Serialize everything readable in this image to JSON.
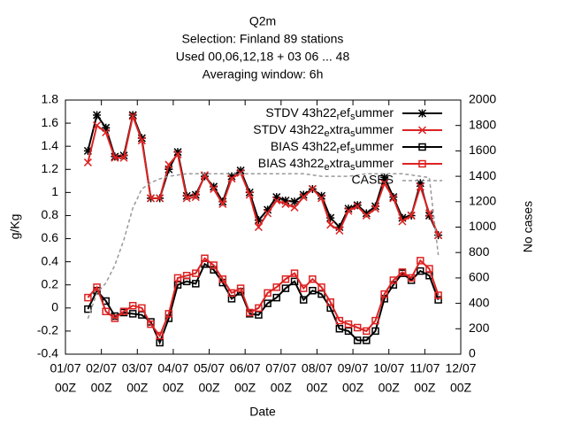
{
  "chart_data": {
    "type": "line",
    "title": [
      "Q2m",
      "Selection: Finland      89 stations",
      "Used  00,06,12,18  + 03 06 ... 48",
      "Averaging window:  6h"
    ],
    "xlabel": "Date",
    "ylabel": "g/Kg",
    "y2label": "No cases",
    "xlim": [
      1,
      12
    ],
    "xticks": [
      {
        "value": 1,
        "label": [
          "01/07",
          "00Z"
        ]
      },
      {
        "value": 2,
        "label": [
          "02/07",
          "00Z"
        ]
      },
      {
        "value": 3,
        "label": [
          "03/07",
          "00Z"
        ]
      },
      {
        "value": 4,
        "label": [
          "04/07",
          "00Z"
        ]
      },
      {
        "value": 5,
        "label": [
          "05/07",
          "00Z"
        ]
      },
      {
        "value": 6,
        "label": [
          "06/07",
          "00Z"
        ]
      },
      {
        "value": 7,
        "label": [
          "07/07",
          "00Z"
        ]
      },
      {
        "value": 8,
        "label": [
          "08/07",
          "00Z"
        ]
      },
      {
        "value": 9,
        "label": [
          "09/07",
          "00Z"
        ]
      },
      {
        "value": 10,
        "label": [
          "10/07",
          "00Z"
        ]
      },
      {
        "value": 11,
        "label": [
          "11/07",
          "00Z"
        ]
      },
      {
        "value": 12,
        "label": [
          "12/07",
          "00Z"
        ]
      }
    ],
    "ylim": [
      -0.4,
      1.8
    ],
    "yticks": [
      -0.4,
      -0.2,
      0,
      0.2,
      0.4,
      0.6,
      0.8,
      1,
      1.2,
      1.4,
      1.6,
      1.8
    ],
    "y2lim": [
      0,
      2000
    ],
    "y2ticks": [
      0,
      200,
      400,
      600,
      800,
      1000,
      1200,
      1400,
      1600,
      1800,
      2000
    ],
    "legend": "top-right",
    "grid": false,
    "x": [
      1.625,
      1.875,
      2.125,
      2.375,
      2.625,
      2.875,
      3.125,
      3.375,
      3.625,
      3.875,
      4.125,
      4.375,
      4.625,
      4.875,
      5.125,
      5.375,
      5.625,
      5.875,
      6.125,
      6.375,
      6.625,
      6.875,
      7.125,
      7.375,
      7.625,
      7.875,
      8.125,
      8.375,
      8.625,
      8.875,
      9.125,
      9.375,
      9.625,
      9.875,
      10.125,
      10.375,
      10.625,
      10.875,
      11.125,
      11.375
    ],
    "series": [
      {
        "name": "STDV 43h22_ref_summer",
        "color": "#000000",
        "marker": "star",
        "values": [
          1.36,
          1.67,
          1.56,
          1.31,
          1.32,
          1.67,
          1.47,
          0.95,
          0.95,
          1.2,
          1.35,
          0.97,
          0.98,
          1.14,
          1.05,
          0.92,
          1.14,
          1.19,
          1.0,
          0.76,
          0.85,
          0.96,
          0.93,
          0.92,
          0.98,
          1.03,
          0.97,
          0.78,
          0.7,
          0.86,
          0.89,
          0.82,
          0.88,
          1.13,
          0.96,
          0.78,
          0.8,
          1.08,
          0.8,
          0.63
        ]
      },
      {
        "name": "STDV 43h22_extra_summer",
        "color": "#dd2222",
        "marker": "cross",
        "values": [
          1.26,
          1.58,
          1.52,
          1.3,
          1.3,
          1.66,
          1.45,
          0.95,
          0.95,
          1.24,
          1.33,
          0.95,
          0.96,
          1.15,
          1.03,
          0.9,
          1.12,
          1.17,
          0.98,
          0.7,
          0.82,
          0.93,
          0.9,
          0.87,
          0.96,
          1.03,
          0.95,
          0.72,
          0.67,
          0.84,
          0.88,
          0.8,
          0.86,
          1.08,
          0.95,
          0.75,
          0.8,
          1.05,
          0.82,
          0.63
        ]
      },
      {
        "name": "BIAS 43h22_ref_summer",
        "color": "#000000",
        "marker": "square",
        "values": [
          -0.01,
          0.15,
          0.06,
          -0.07,
          -0.04,
          -0.05,
          -0.06,
          -0.12,
          -0.3,
          -0.09,
          0.2,
          0.23,
          0.21,
          0.38,
          0.33,
          0.22,
          0.08,
          0.14,
          -0.05,
          -0.06,
          0.04,
          0.09,
          0.17,
          0.23,
          0.07,
          0.15,
          0.12,
          0.0,
          -0.18,
          -0.2,
          -0.28,
          -0.28,
          -0.2,
          0.08,
          0.2,
          0.3,
          0.24,
          0.32,
          0.28,
          0.07
        ]
      },
      {
        "name": "BIAS 43h22_extra_summer",
        "color": "#dd2222",
        "marker": "square",
        "values": [
          0.09,
          0.18,
          -0.03,
          -0.09,
          -0.03,
          0.02,
          0.0,
          -0.14,
          -0.24,
          -0.05,
          0.26,
          0.28,
          0.3,
          0.43,
          0.37,
          0.25,
          0.13,
          0.17,
          -0.04,
          0.0,
          0.13,
          0.18,
          0.25,
          0.3,
          0.17,
          0.25,
          0.18,
          0.05,
          -0.11,
          -0.14,
          -0.17,
          -0.2,
          -0.11,
          0.12,
          0.24,
          0.31,
          0.26,
          0.41,
          0.34,
          0.11
        ]
      },
      {
        "name": "CASES",
        "color": "#999999",
        "marker": "none",
        "dashed": true,
        "axis": "y2",
        "values": [
          280,
          480,
          560,
          700,
          900,
          1150,
          1300,
          1350,
          1380,
          1400,
          1410,
          1420,
          1420,
          1420,
          1420,
          1420,
          1420,
          1420,
          1420,
          1420,
          1420,
          1420,
          1420,
          1420,
          1420,
          1410,
          1400,
          1400,
          1400,
          1400,
          1410,
          1420,
          1420,
          1420,
          1420,
          1420,
          1410,
          1400,
          1390,
          780
        ]
      }
    ]
  }
}
